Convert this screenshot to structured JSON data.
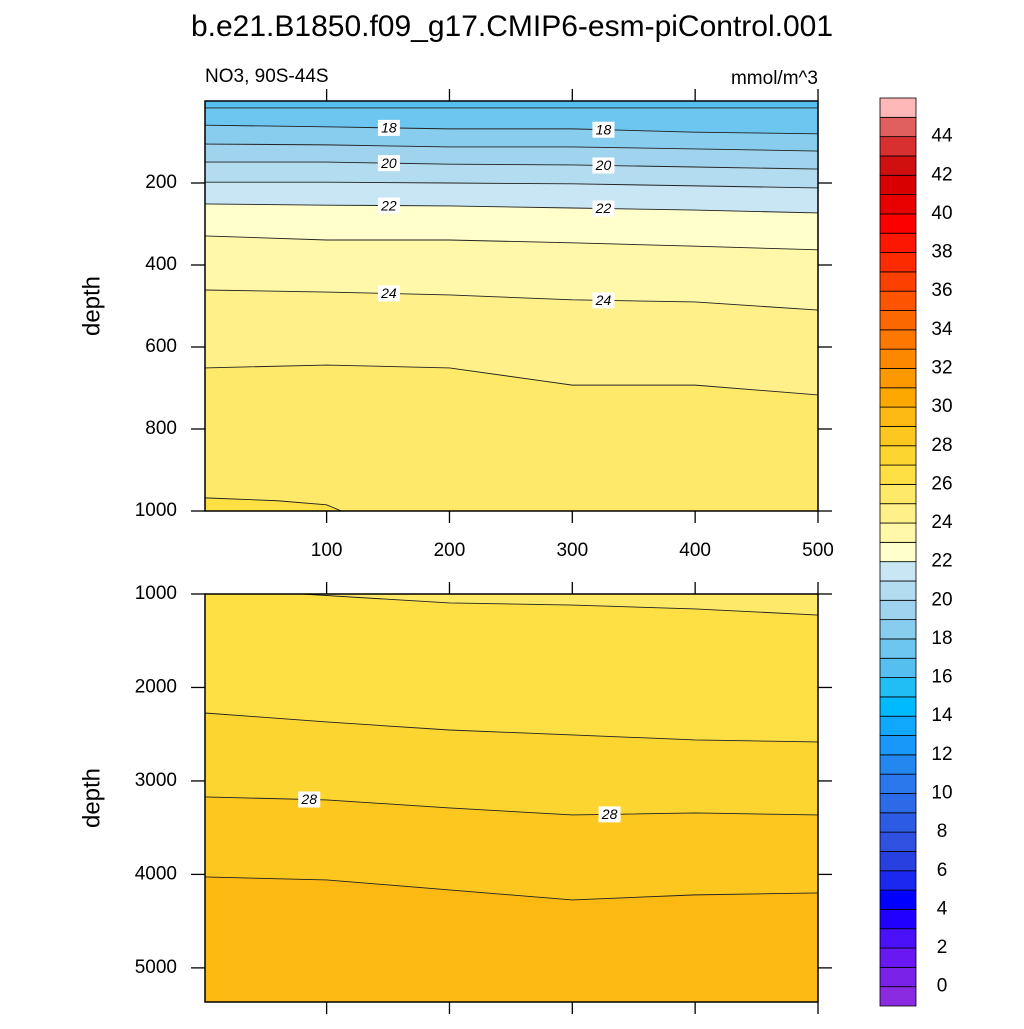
{
  "title": "b.e21.B1850.f09_g17.CMIP6-esm-piControl.001",
  "chart_data": [
    {
      "type": "contour",
      "subtitle_left": "NO3, 90S-44S",
      "subtitle_right": "mmol/m^3",
      "ylabel": "depth",
      "xlim": [
        1,
        500
      ],
      "ylim": [
        0,
        1000
      ],
      "y_reversed": true,
      "xticks": [
        100,
        200,
        300,
        400,
        500
      ],
      "xtick_labels": true,
      "yticks": [
        200,
        400,
        600,
        800,
        1000
      ],
      "contours": [
        {
          "level": 17,
          "labeled": false,
          "x": [
            1,
            100,
            200,
            300,
            400,
            500
          ],
          "depth": [
            17,
            17,
            17,
            17,
            17,
            17
          ]
        },
        {
          "level": 18,
          "labeled": true,
          "x": [
            1,
            100,
            200,
            300,
            400,
            500
          ],
          "depth": [
            59,
            63,
            68,
            68,
            76,
            80
          ]
        },
        {
          "level": 19,
          "labeled": false,
          "x": [
            1,
            100,
            200,
            300,
            400,
            500
          ],
          "depth": [
            105,
            107,
            112,
            112,
            117,
            122
          ]
        },
        {
          "level": 20,
          "labeled": true,
          "x": [
            1,
            100,
            200,
            300,
            400,
            500
          ],
          "depth": [
            149,
            149,
            154,
            156,
            161,
            166
          ]
        },
        {
          "level": 21,
          "labeled": false,
          "x": [
            1,
            100,
            200,
            300,
            400,
            500
          ],
          "depth": [
            198,
            198,
            200,
            202,
            207,
            212
          ]
        },
        {
          "level": 22,
          "labeled": true,
          "x": [
            1,
            100,
            200,
            300,
            400,
            500
          ],
          "depth": [
            251,
            254,
            256,
            261,
            266,
            273
          ]
        },
        {
          "level": 23,
          "labeled": false,
          "x": [
            1,
            100,
            200,
            300,
            400,
            500
          ],
          "depth": [
            329,
            339,
            339,
            346,
            354,
            363
          ]
        },
        {
          "level": 24,
          "labeled": true,
          "x": [
            1,
            100,
            200,
            300,
            400,
            500
          ],
          "depth": [
            461,
            466,
            473,
            485,
            490,
            510
          ]
        },
        {
          "level": 25,
          "labeled": false,
          "x": [
            1,
            100,
            200,
            300,
            400,
            500
          ],
          "depth": [
            651,
            644,
            651,
            693,
            693,
            717
          ]
        },
        {
          "level": 26,
          "labeled": false,
          "x": [
            1,
            60,
            100,
            112
          ],
          "depth": [
            968,
            975,
            985,
            1000
          ]
        }
      ]
    },
    {
      "type": "contour",
      "ylabel": "depth",
      "xlim": [
        1,
        500
      ],
      "ylim": [
        1000,
        5365
      ],
      "y_reversed": true,
      "xticks": [
        100,
        200,
        300,
        400,
        500
      ],
      "xtick_labels": false,
      "yticks": [
        1000,
        2000,
        3000,
        4000,
        5000
      ],
      "contours": [
        {
          "level": 26,
          "labeled": false,
          "x": [
            80,
            200,
            300,
            400,
            500
          ],
          "depth": [
            1000,
            1096,
            1118,
            1160,
            1225
          ]
        },
        {
          "level": 27,
          "labeled": false,
          "x": [
            1,
            100,
            200,
            300,
            400,
            500
          ],
          "depth": [
            2273,
            2369,
            2455,
            2508,
            2561,
            2583
          ]
        },
        {
          "level": 28,
          "labeled": true,
          "x": [
            1,
            100,
            200,
            300,
            400,
            500
          ],
          "depth": [
            3171,
            3203,
            3289,
            3364,
            3342,
            3364
          ]
        },
        {
          "level": 29,
          "labeled": false,
          "x": [
            1,
            100,
            200,
            300,
            400,
            500
          ],
          "depth": [
            4027,
            4059,
            4166,
            4273,
            4219,
            4198
          ]
        }
      ]
    }
  ],
  "colorbar": {
    "levels": [
      0,
      1,
      2,
      3,
      4,
      5,
      6,
      7,
      8,
      9,
      10,
      11,
      12,
      13,
      14,
      15,
      16,
      17,
      18,
      19,
      20,
      21,
      22,
      23,
      24,
      25,
      26,
      27,
      28,
      29,
      30,
      31,
      32,
      33,
      34,
      35,
      36,
      37,
      38,
      39,
      40,
      41,
      42,
      43,
      44,
      45
    ],
    "ticks": [
      0,
      2,
      4,
      6,
      8,
      10,
      12,
      14,
      16,
      18,
      20,
      22,
      24,
      26,
      28,
      30,
      32,
      34,
      36,
      38,
      40,
      42,
      44
    ],
    "colors": [
      "#8a2be2",
      "#7a22e8",
      "#6818f0",
      "#4a10f8",
      "#2000ff",
      "#0000ff",
      "#1a28f0",
      "#2840e0",
      "#3050e0",
      "#2c5ce4",
      "#2c6ae8",
      "#2a78ec",
      "#2288f0",
      "#1898f8",
      "#10a8fc",
      "#00baff",
      "#20bef4",
      "#55c0f0",
      "#6cc6f0",
      "#88ccee",
      "#a0d4ee",
      "#b4dcf0",
      "#c8e6f4",
      "#ffffcc",
      "#fff8a8",
      "#fff08a",
      "#feea68",
      "#fee044",
      "#fdd530",
      "#fcc820",
      "#fcb911",
      "#fca800",
      "#fc9800",
      "#fc8800",
      "#fc7800",
      "#fc6800",
      "#fc5400",
      "#fc4000",
      "#fc2c00",
      "#fc1800",
      "#fc0000",
      "#e80000",
      "#d80000",
      "#d01010",
      "#d83030",
      "#e06060",
      "#ffb8b8"
    ]
  }
}
